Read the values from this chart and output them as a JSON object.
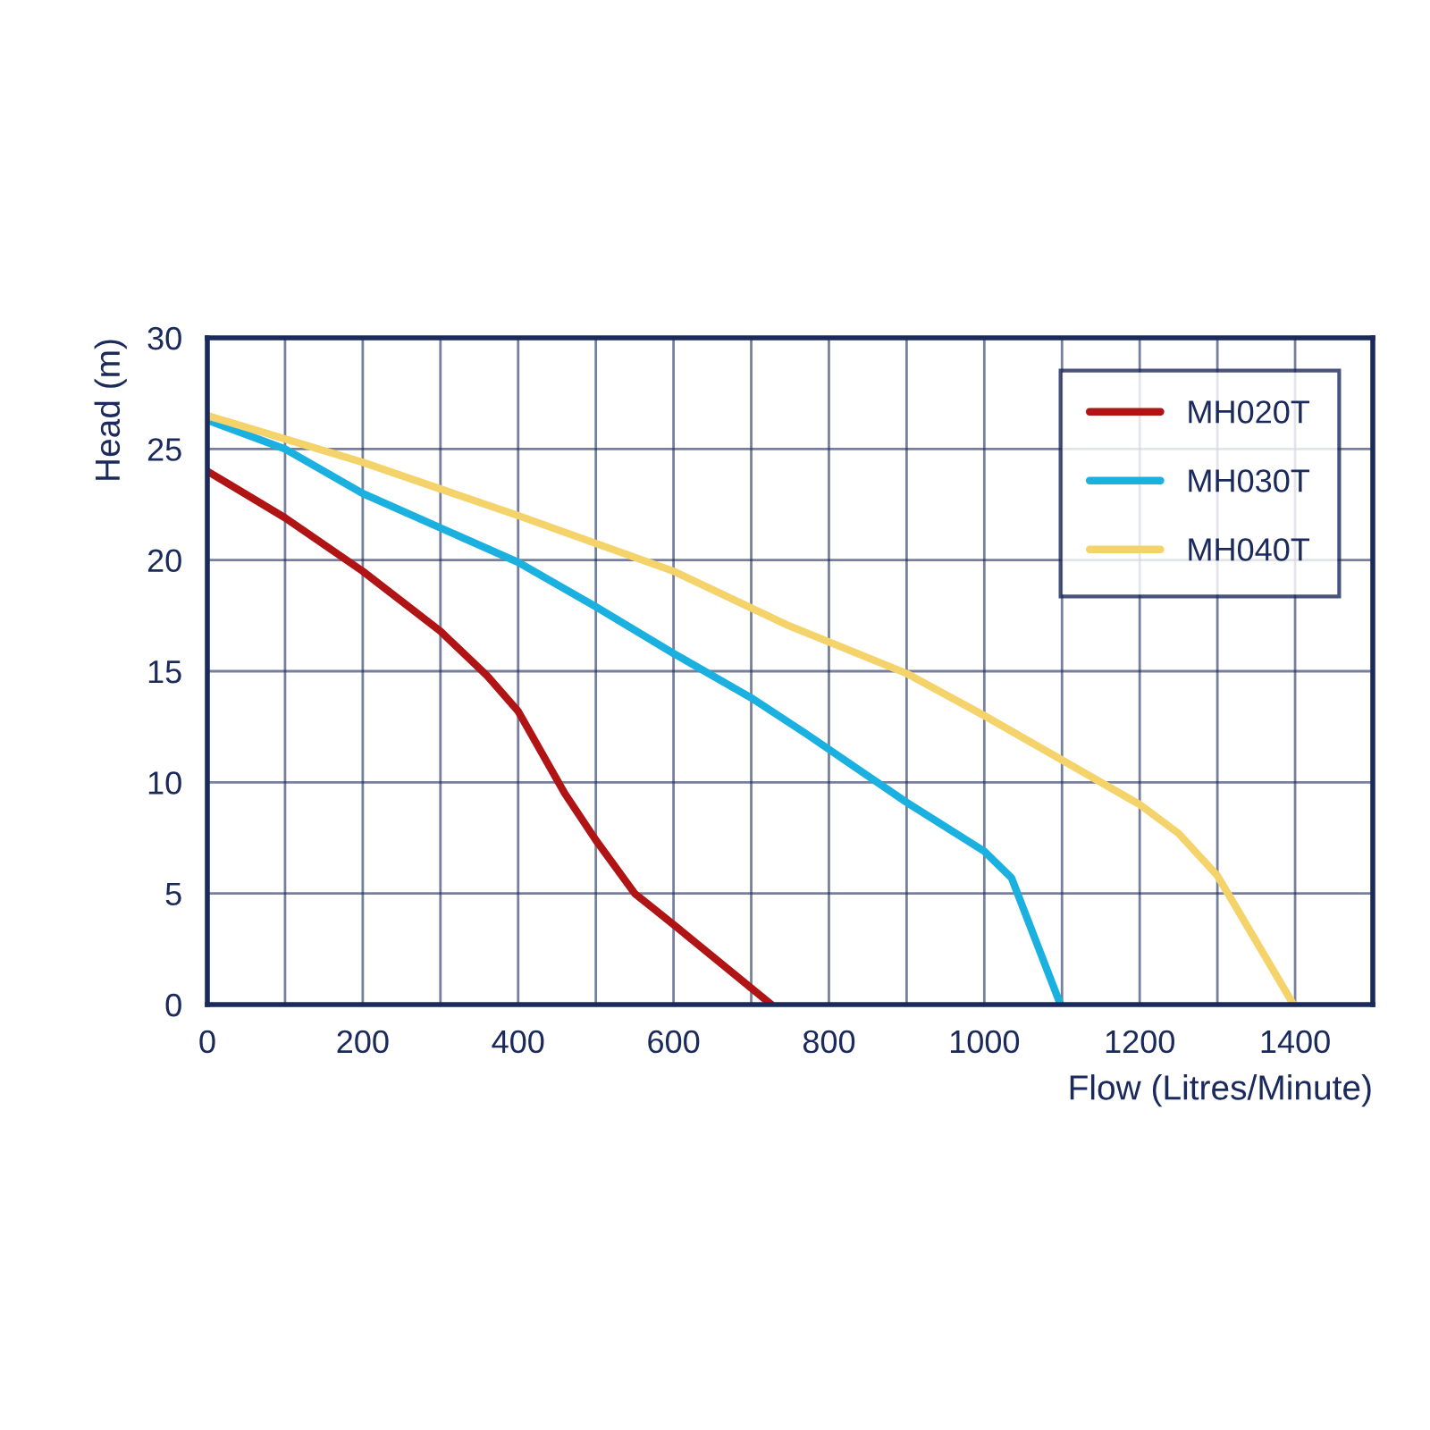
{
  "chart_data": {
    "type": "line",
    "xlabel": "Flow (Litres/Minute)",
    "ylabel": "Head (m)",
    "xlim": [
      0,
      1500
    ],
    "ylim": [
      0,
      30
    ],
    "xticks": [
      0,
      {
        "value": 100,
        "label": null
      },
      200,
      {
        "value": 300,
        "label": null
      },
      400,
      {
        "value": 500,
        "label": null
      },
      600,
      {
        "value": 700,
        "label": null
      },
      800,
      {
        "value": 900,
        "label": null
      },
      1000,
      {
        "value": 1100,
        "label": null
      },
      1200,
      {
        "value": 1300,
        "label": null
      },
      1400,
      {
        "value": 1500,
        "label": null
      }
    ],
    "yticks": [
      0,
      5,
      10,
      15,
      20,
      25,
      30
    ],
    "grid": true,
    "legend": "top right",
    "line_style": "solid",
    "marker": "none",
    "series": [
      {
        "name": "MH020T",
        "color": "#b01414",
        "x": [
          0,
          100,
          200,
          300,
          360,
          400,
          460,
          500,
          550,
          600,
          726
        ],
        "values": [
          24.0,
          21.9,
          19.5,
          16.8,
          14.8,
          13.2,
          9.5,
          7.4,
          5.0,
          3.6,
          0
        ]
      },
      {
        "name": "MH030T",
        "color": "#1ab0e0",
        "x": [
          0,
          100,
          200,
          400,
          500,
          600,
          700,
          770,
          900,
          1000,
          1035,
          1098
        ],
        "values": [
          26.3,
          25.0,
          23.0,
          19.9,
          17.9,
          15.8,
          13.8,
          12.2,
          9.1,
          6.9,
          5.7,
          0
        ]
      },
      {
        "name": "MH040T",
        "color": "#f5d36b",
        "x": [
          0,
          200,
          400,
          600,
          745,
          900,
          1000,
          1100,
          1200,
          1250,
          1300,
          1398
        ],
        "values": [
          26.5,
          24.4,
          22.0,
          19.5,
          17.1,
          14.9,
          13.0,
          11.0,
          9.0,
          7.7,
          5.8,
          0
        ]
      }
    ]
  }
}
